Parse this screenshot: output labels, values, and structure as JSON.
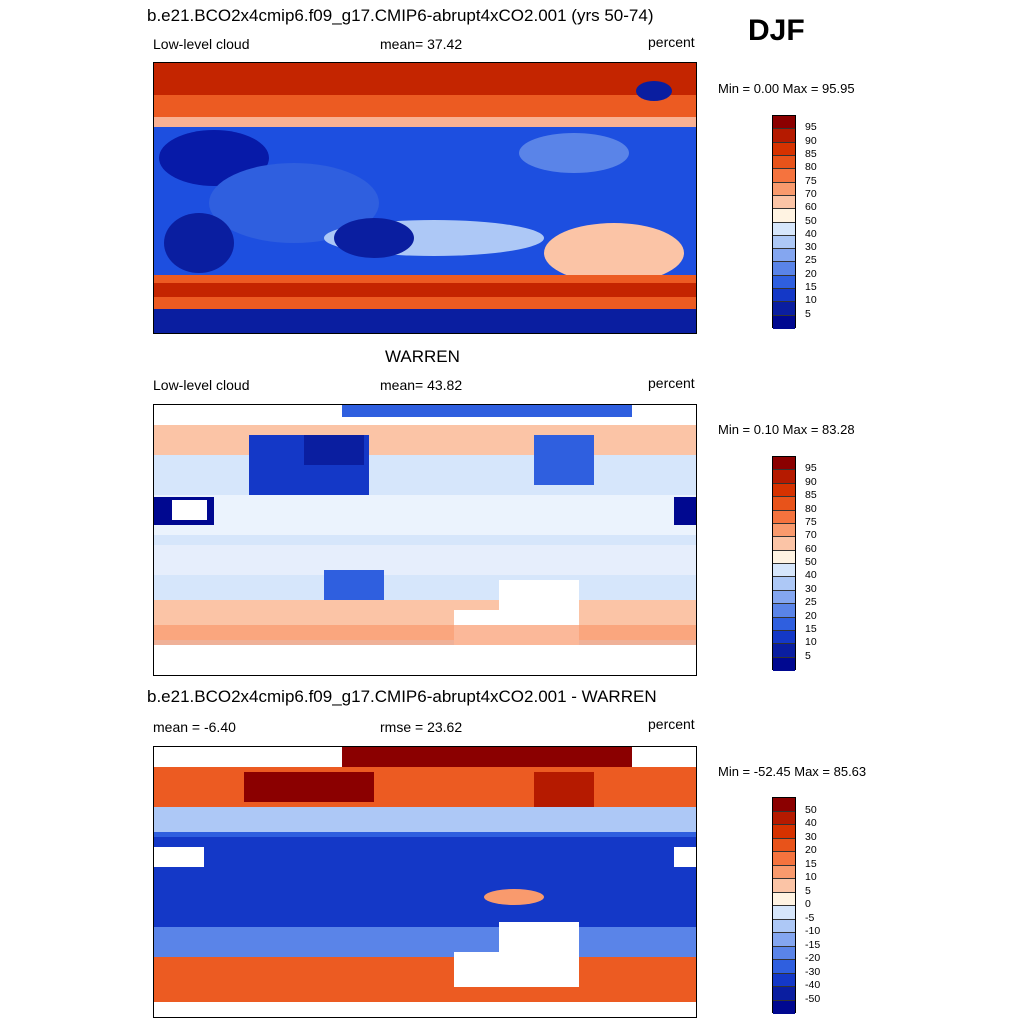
{
  "season": "DJF",
  "panels": [
    {
      "title": "b.e21.BCO2x4cmip6.f09_g17.CMIP6-abrupt4xCO2.001 (yrs 50-74)",
      "left": "Low-level cloud",
      "center": "mean=  37.42",
      "right": "percent",
      "minmax": "Min =   0.00 Max =  95.95",
      "colorbar": {
        "labels": [
          "95",
          "90",
          "85",
          "80",
          "75",
          "70",
          "60",
          "50",
          "40",
          "30",
          "25",
          "20",
          "15",
          "10",
          "5"
        ],
        "colors": [
          "#8b0000",
          "#b51a00",
          "#d63200",
          "#e8531a",
          "#f5733e",
          "#f99a6d",
          "#fbc4a6",
          "#fff3e2",
          "#d6e6fb",
          "#adc8f6",
          "#84a6f0",
          "#5a84e8",
          "#2f5fdf",
          "#1438c7",
          "#0a1ea0",
          "#000890"
        ]
      },
      "map_kind": "model"
    },
    {
      "title": "WARREN",
      "left": "Low-level cloud",
      "center": "mean=  43.82",
      "right": "percent",
      "minmax": "Min =   0.10 Max =  83.28",
      "colorbar": {
        "labels": [
          "95",
          "90",
          "85",
          "80",
          "75",
          "70",
          "60",
          "50",
          "40",
          "30",
          "25",
          "20",
          "15",
          "10",
          "5"
        ],
        "colors": [
          "#8b0000",
          "#b51a00",
          "#d63200",
          "#e8531a",
          "#f5733e",
          "#f99a6d",
          "#fbc4a6",
          "#fff3e2",
          "#d6e6fb",
          "#adc8f6",
          "#84a6f0",
          "#5a84e8",
          "#2f5fdf",
          "#1438c7",
          "#0a1ea0",
          "#000890"
        ]
      },
      "map_kind": "obs"
    },
    {
      "title": "b.e21.BCO2x4cmip6.f09_g17.CMIP6-abrupt4xCO2.001 - WARREN",
      "left": "mean =  -6.40",
      "center": "rmse =  23.62",
      "right": "percent",
      "minmax": "Min = -52.45 Max =  85.63",
      "colorbar": {
        "labels": [
          "50",
          "40",
          "30",
          "20",
          "15",
          "10",
          "5",
          "0",
          "-5",
          "-10",
          "-15",
          "-20",
          "-30",
          "-40",
          "-50"
        ],
        "colors": [
          "#8b0000",
          "#b51a00",
          "#d63200",
          "#e8531a",
          "#f5733e",
          "#f99a6d",
          "#fbc4a6",
          "#fff3e2",
          "#d6e6fb",
          "#adc8f6",
          "#84a6f0",
          "#5a84e8",
          "#2f5fdf",
          "#1438c7",
          "#0a1ea0",
          "#000890"
        ]
      },
      "map_kind": "diff"
    }
  ]
}
